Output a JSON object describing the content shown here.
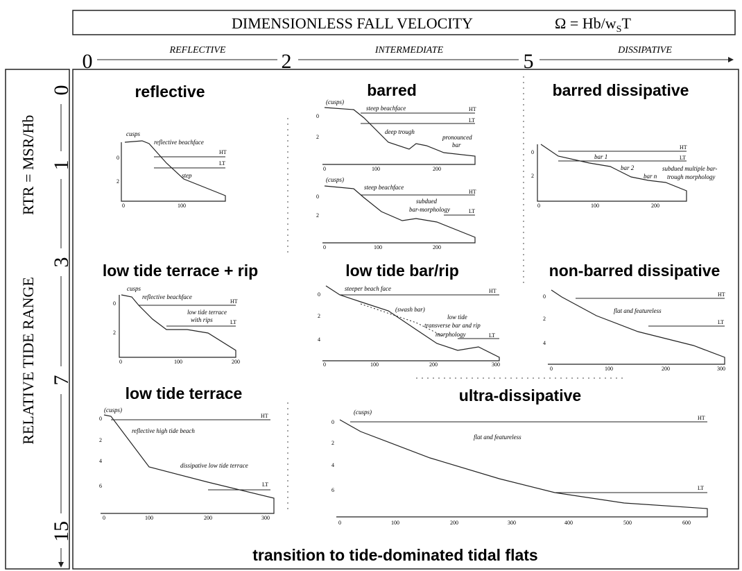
{
  "header": {
    "title": "DIMENSIONLESS FALL VELOCITY",
    "formula": "Ω = Hb/w",
    "formula_sub": "S",
    "formula_end": "T"
  },
  "top_scale": {
    "values": [
      "0",
      "2",
      "5"
    ],
    "zones": [
      "REFLECTIVE",
      "INTERMEDIATE",
      "DISSIPATIVE"
    ]
  },
  "left_axis": {
    "title": "RELATIVE TIDE RANGE",
    "formula": "RTR = MSR/Hb",
    "values": [
      "0",
      "1",
      "3",
      "7",
      "15"
    ]
  },
  "footer": "transition to tide-dominated tidal flats",
  "panels": [
    {
      "title": "reflective",
      "plots": [
        {
          "notes": [
            "cusps",
            "reflective beachface",
            "step"
          ],
          "tide_labels": [
            "HT",
            "LT"
          ],
          "yticks": [
            "0",
            "2"
          ],
          "xticks": [
            "0",
            "100"
          ]
        }
      ]
    },
    {
      "title": "barred",
      "plots": [
        {
          "notes": [
            "(cusps)",
            "steep beachface",
            "deep trough",
            "pronounced",
            "bar"
          ],
          "tide_labels": [
            "HT",
            "LT"
          ],
          "yticks": [
            "0",
            "2"
          ],
          "xticks": [
            "0",
            "100",
            "200"
          ]
        },
        {
          "notes": [
            "(cusps)",
            "steep beachface",
            "subdued",
            "bar-morphology"
          ],
          "tide_labels": [
            "HT",
            "LT"
          ],
          "yticks": [
            "0",
            "2"
          ],
          "xticks": [
            "0",
            "100",
            "200"
          ]
        }
      ]
    },
    {
      "title": "barred dissipative",
      "plots": [
        {
          "notes": [
            "bar 1",
            "bar 2",
            "bar n",
            "subdued multiple bar-",
            "trough morphology"
          ],
          "tide_labels": [
            "HT",
            "LT"
          ],
          "yticks": [
            "0",
            "2"
          ],
          "xticks": [
            "0",
            "100",
            "200"
          ]
        }
      ]
    },
    {
      "title": "low tide terrace + rip",
      "plots": [
        {
          "notes": [
            "cusps",
            "reflective beachface",
            "low tide terrace",
            "with rips"
          ],
          "tide_labels": [
            "HT",
            "LT"
          ],
          "yticks": [
            "0",
            "2"
          ],
          "xticks": [
            "0",
            "100",
            "200"
          ]
        }
      ]
    },
    {
      "title": "low tide bar/rip",
      "plots": [
        {
          "notes": [
            "steeper beach face",
            "(swash bar)",
            "low tide",
            "transverse bar and rip",
            "morphology"
          ],
          "tide_labels": [
            "HT",
            "LT"
          ],
          "yticks": [
            "0",
            "2",
            "4"
          ],
          "xticks": [
            "0",
            "100",
            "200",
            "300"
          ]
        }
      ]
    },
    {
      "title": "non-barred dissipative",
      "plots": [
        {
          "notes": [
            "flat and featureless"
          ],
          "tide_labels": [
            "HT",
            "LT"
          ],
          "yticks": [
            "0",
            "2",
            "4"
          ],
          "xticks": [
            "0",
            "100",
            "200",
            "300"
          ]
        }
      ]
    },
    {
      "title": "low tide terrace",
      "plots": [
        {
          "notes": [
            "(cusps)",
            "reflective high tide beach",
            "dissipative low tide terrace"
          ],
          "tide_labels": [
            "HT",
            "LT"
          ],
          "yticks": [
            "0",
            "2",
            "4",
            "6"
          ],
          "xticks": [
            "0",
            "100",
            "200",
            "300"
          ]
        }
      ]
    },
    {
      "title": "ultra-dissipative",
      "plots": [
        {
          "notes": [
            "(cusps)",
            "flat and featureless"
          ],
          "tide_labels": [
            "HT",
            "LT"
          ],
          "yticks": [
            "0",
            "2",
            "4",
            "6"
          ],
          "xticks": [
            "0",
            "100",
            "200",
            "300",
            "400",
            "500",
            "600"
          ]
        }
      ]
    }
  ]
}
